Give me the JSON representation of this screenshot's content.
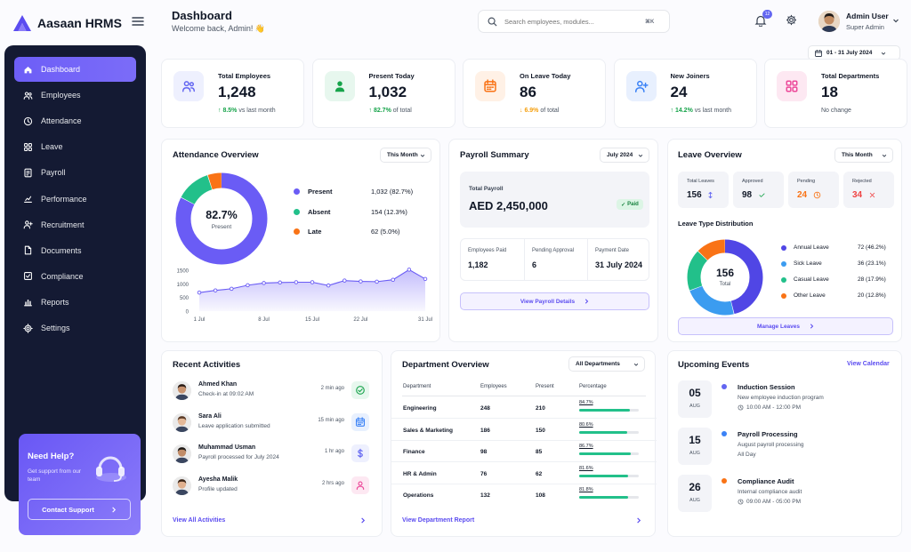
{
  "app": {
    "name": "Aasaan HRMS"
  },
  "sidebar": {
    "items": [
      {
        "label": "Dashboard",
        "icon": "home-icon"
      },
      {
        "label": "Employees",
        "icon": "users-icon"
      },
      {
        "label": "Attendance",
        "icon": "clock-icon"
      },
      {
        "label": "Leave",
        "icon": "grid-icon"
      },
      {
        "label": "Payroll",
        "icon": "doc-icon"
      },
      {
        "label": "Performance",
        "icon": "chart-icon"
      },
      {
        "label": "Recruitment",
        "icon": "user-plus-icon"
      },
      {
        "label": "Documents",
        "icon": "file-icon"
      },
      {
        "label": "Compliance",
        "icon": "check-square-icon"
      },
      {
        "label": "Reports",
        "icon": "bar-chart-icon"
      },
      {
        "label": "Settings",
        "icon": "gear-icon"
      }
    ],
    "help": {
      "title": "Need Help?",
      "text": "Get support from our team",
      "button": "Contact Support"
    }
  },
  "header": {
    "title": "Dashboard",
    "subtitle": "Welcome back, Admin! 👋",
    "search_placeholder": "Search employees, modules...",
    "search_shortcut": "⌘K",
    "notifications": "12",
    "user_name": "Admin User",
    "user_role": "Super Admin",
    "date_range": "01 - 31 July 2024"
  },
  "stats": [
    {
      "label": "Total Employees",
      "value": "1,248",
      "delta": "8.5%",
      "delta_text": "vs last month",
      "dir": "up",
      "color": "#6366f1",
      "bg": "#eef0fe",
      "icon": "users-icon"
    },
    {
      "label": "Present Today",
      "value": "1,032",
      "delta": "82.7%",
      "delta_text": "of total",
      "dir": "up",
      "color": "#16a34a",
      "bg": "#e7f7ee",
      "icon": "user-check-icon"
    },
    {
      "label": "On Leave Today",
      "value": "86",
      "delta": "6.9%",
      "delta_text": "of total",
      "dir": "down",
      "color": "#f97316",
      "bg": "#fff1e6",
      "icon": "calendar-icon"
    },
    {
      "label": "New Joiners",
      "value": "24",
      "delta": "14.2%",
      "delta_text": "vs last month",
      "dir": "up",
      "color": "#3b82f6",
      "bg": "#e8f0fe",
      "icon": "user-plus-icon"
    },
    {
      "label": "Total Departments",
      "value": "18",
      "delta": "",
      "delta_text": "No change",
      "dir": "none",
      "color": "#ec4899",
      "bg": "#fde8f2",
      "icon": "grid-icon"
    }
  ],
  "attendance": {
    "title": "Attendance Overview",
    "filter": "This Month",
    "center_value": "82.7%",
    "center_label": "Present",
    "legend": [
      {
        "label": "Present",
        "value": "1,032 (82.7%)",
        "color": "#6a5cf5",
        "pct": 82.7
      },
      {
        "label": "Absent",
        "value": "154 (12.3%)",
        "color": "#22c08a",
        "pct": 12.3
      },
      {
        "label": "Late",
        "value": "62 (5.0%)",
        "color": "#f97316",
        "pct": 5.0
      }
    ],
    "chart_data": {
      "type": "area",
      "x": [
        "1 Jul",
        "2 Jul",
        "4 Jul",
        "6 Jul",
        "8 Jul",
        "10 Jul",
        "12 Jul",
        "15 Jul",
        "17 Jul",
        "19 Jul",
        "22 Jul",
        "24 Jul",
        "27 Jul",
        "29 Jul",
        "31 Jul"
      ],
      "xticks": [
        "1 Jul",
        "8 Jul",
        "15 Jul",
        "22 Jul",
        "31 Jul"
      ],
      "y": [
        680,
        760,
        820,
        950,
        1030,
        1050,
        1060,
        1060,
        940,
        1120,
        1090,
        1080,
        1150,
        1520,
        1180
      ],
      "yticks": [
        "1500",
        "1000",
        "500",
        "0"
      ],
      "ylim": [
        0,
        1500
      ]
    }
  },
  "payroll": {
    "title": "Payroll Summary",
    "filter": "July 2024",
    "total_label": "Total Payroll",
    "total_value": "AED 2,450,000",
    "status": "Paid",
    "cells": [
      {
        "label": "Employees Paid",
        "value": "1,182"
      },
      {
        "label": "Pending Approval",
        "value": "6"
      },
      {
        "label": "Payment Date",
        "value": "31 July 2024"
      }
    ],
    "button": "View Payroll Details"
  },
  "leave": {
    "title": "Leave Overview",
    "filter": "This Month",
    "boxes": [
      {
        "label": "Total Leaves",
        "value": "156",
        "color": "#111827",
        "icon": "sort-icon",
        "iconcolor": "#6366f1"
      },
      {
        "label": "Approved",
        "value": "98",
        "color": "#111827",
        "icon": "check-icon",
        "iconcolor": "#16a34a"
      },
      {
        "label": "Pending",
        "value": "24",
        "color": "#f97316",
        "icon": "clock-icon",
        "iconcolor": "#f97316"
      },
      {
        "label": "Rejected",
        "value": "34",
        "color": "#ef4444",
        "icon": "x-icon",
        "iconcolor": "#ef4444"
      }
    ],
    "dist_title": "Leave Type Distribution",
    "center_value": "156",
    "center_label": "Total",
    "types": [
      {
        "label": "Annual Leave",
        "value": "72 (46.2%)",
        "color": "#5046e5",
        "pct": 46.2
      },
      {
        "label": "Sick Leave",
        "value": "36 (23.1%)",
        "color": "#3b9cf0",
        "pct": 23.1
      },
      {
        "label": "Casual Leave",
        "value": "28 (17.9%)",
        "color": "#22c08a",
        "pct": 17.9
      },
      {
        "label": "Other Leave",
        "value": "20 (12.8%)",
        "color": "#f97316",
        "pct": 12.8
      }
    ],
    "button": "Manage Leaves"
  },
  "activities": {
    "title": "Recent Activities",
    "items": [
      {
        "name": "Ahmed Khan",
        "text": "Check-in at 09:02 AM",
        "time": "2 min ago",
        "color": "#16a34a",
        "bg": "#e7f7ee",
        "icon": "check-circle-icon",
        "skin": "#c99470",
        "hair": "#2b1d16"
      },
      {
        "name": "Sara Ali",
        "text": "Leave application submitted",
        "time": "15 min ago",
        "color": "#3b82f6",
        "bg": "#e8f0fe",
        "icon": "calendar-icon",
        "skin": "#e3b898",
        "hair": "#5a3a26"
      },
      {
        "name": "Muhammad Usman",
        "text": "Payroll processed for July 2024",
        "time": "1 hr ago",
        "color": "#6366f1",
        "bg": "#eef0fe",
        "icon": "dollar-icon",
        "skin": "#c18c68",
        "hair": "#1f1a17"
      },
      {
        "name": "Ayesha Malik",
        "text": "Profile updated",
        "time": "2 hrs ago",
        "color": "#ec4899",
        "bg": "#fde8f2",
        "icon": "user-icon",
        "skin": "#e0b08e",
        "hair": "#3a2416"
      }
    ],
    "link": "View All Activities"
  },
  "departments": {
    "title": "Department Overview",
    "filter": "All Departments",
    "headers": [
      "Department",
      "Employees",
      "Present",
      "Percentage"
    ],
    "rows": [
      {
        "name": "Engineering",
        "employees": "248",
        "present": "210",
        "pct_label": "84.7%",
        "pct": 84.7
      },
      {
        "name": "Sales & Marketing",
        "employees": "186",
        "present": "150",
        "pct_label": "80.6%",
        "pct": 80.6
      },
      {
        "name": "Finance",
        "employees": "98",
        "present": "85",
        "pct_label": "86.7%",
        "pct": 86.7
      },
      {
        "name": "HR & Admin",
        "employees": "76",
        "present": "62",
        "pct_label": "81.6%",
        "pct": 81.6
      },
      {
        "name": "Operations",
        "employees": "132",
        "present": "108",
        "pct_label": "81.8%",
        "pct": 81.8
      }
    ],
    "link": "View Department Report"
  },
  "events": {
    "title": "Upcoming Events",
    "link": "View Calendar",
    "items": [
      {
        "day": "05",
        "month": "AUG",
        "title": "Induction Session",
        "desc": "New employee induction program",
        "time": "10:00 AM - 12:00 PM",
        "color": "#6366f1",
        "clock": true
      },
      {
        "day": "15",
        "month": "AUG",
        "title": "Payroll Processing",
        "desc": "August payroll processing",
        "time": "All Day",
        "color": "#3b82f6",
        "clock": false
      },
      {
        "day": "26",
        "month": "AUG",
        "title": "Compliance Audit",
        "desc": "Internal compliance audit",
        "time": "09:00 AM - 05:00 PM",
        "color": "#f97316",
        "clock": true
      }
    ]
  }
}
